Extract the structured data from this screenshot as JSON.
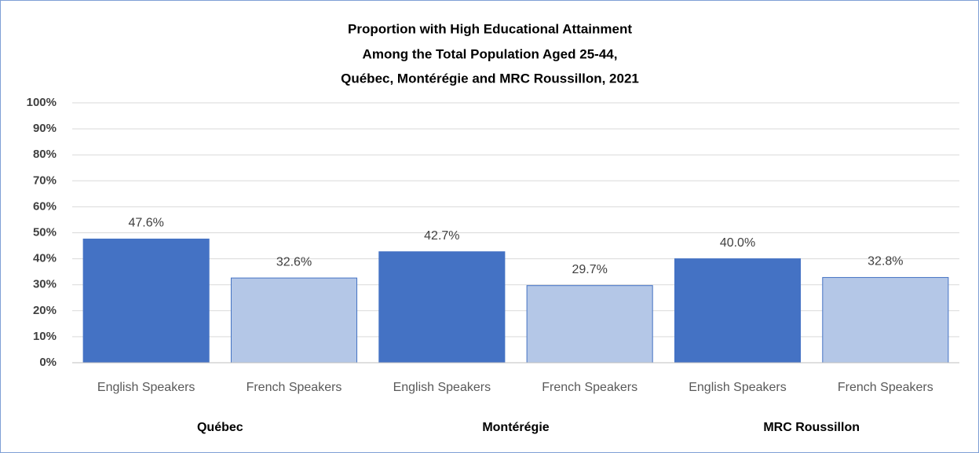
{
  "chart_data": {
    "type": "grouped-bar",
    "title": [
      "Proportion with High Educational  Attainment",
      "Among the Total Population Aged 25-44,",
      "Québec, Montérégie and MRC Roussillon,  2021"
    ],
    "categories": [
      "Québec",
      "Montérégie",
      "MRC Roussillon"
    ],
    "series": [
      {
        "name": "English Speakers",
        "color": "#4472c4",
        "values": [
          47.6,
          42.7,
          40.0
        ],
        "value_labels": [
          "47.6%",
          "42.7%",
          "40.0%"
        ]
      },
      {
        "name": "French Speakers",
        "color": "#b4c7e7",
        "values": [
          32.6,
          29.7,
          32.8
        ],
        "value_labels": [
          "32.6%",
          "29.7%",
          "32.8%"
        ]
      }
    ],
    "ylim": [
      0,
      100
    ],
    "yticks": [
      {
        "value": 0,
        "label": "0%"
      },
      {
        "value": 10,
        "label": "10%"
      },
      {
        "value": 20,
        "label": "20%"
      },
      {
        "value": 30,
        "label": "30%"
      },
      {
        "value": 40,
        "label": "40%"
      },
      {
        "value": 50,
        "label": "50%"
      },
      {
        "value": 60,
        "label": "60%"
      },
      {
        "value": 70,
        "label": "70%"
      },
      {
        "value": 80,
        "label": "80%"
      },
      {
        "value": 90,
        "label": "90%"
      },
      {
        "value": 100,
        "label": "100%"
      }
    ],
    "grid": true
  }
}
